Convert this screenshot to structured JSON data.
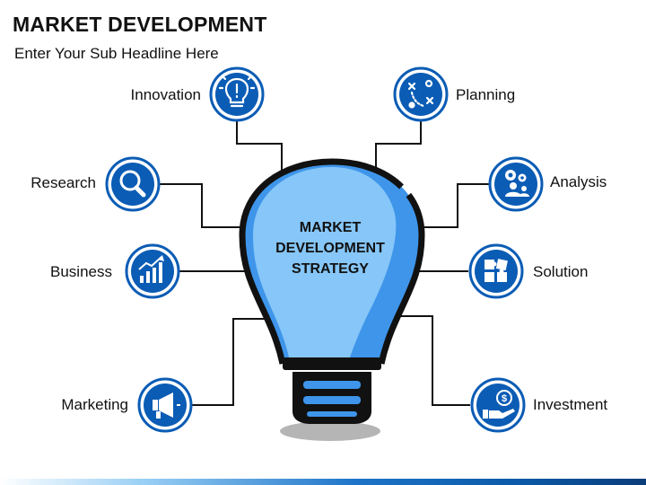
{
  "header": {
    "title": "MARKET DEVELOPMENT",
    "subtitle": "Enter Your Sub Headline Here"
  },
  "center": {
    "lines": [
      "MARKET",
      "DEVELOPMENT",
      "STRATEGY"
    ]
  },
  "nodes": {
    "innovation": {
      "label": "Innovation",
      "icon": "lightbulb-icon"
    },
    "planning": {
      "label": "Planning",
      "icon": "strategy-plan-icon"
    },
    "research": {
      "label": "Research",
      "icon": "magnifier-icon"
    },
    "analysis": {
      "label": "Analysis",
      "icon": "gears-people-icon"
    },
    "business": {
      "label": "Business",
      "icon": "growth-chart-icon"
    },
    "solution": {
      "label": "Solution",
      "icon": "puzzle-icon"
    },
    "marketing": {
      "label": "Marketing",
      "icon": "megaphone-icon"
    },
    "investment": {
      "label": "Investment",
      "icon": "money-hand-icon"
    }
  },
  "colors": {
    "accent": "#0b5cb5",
    "bulb_light": "#7fc1f7",
    "bulb_mid": "#3d94ea",
    "outline": "#111111"
  }
}
